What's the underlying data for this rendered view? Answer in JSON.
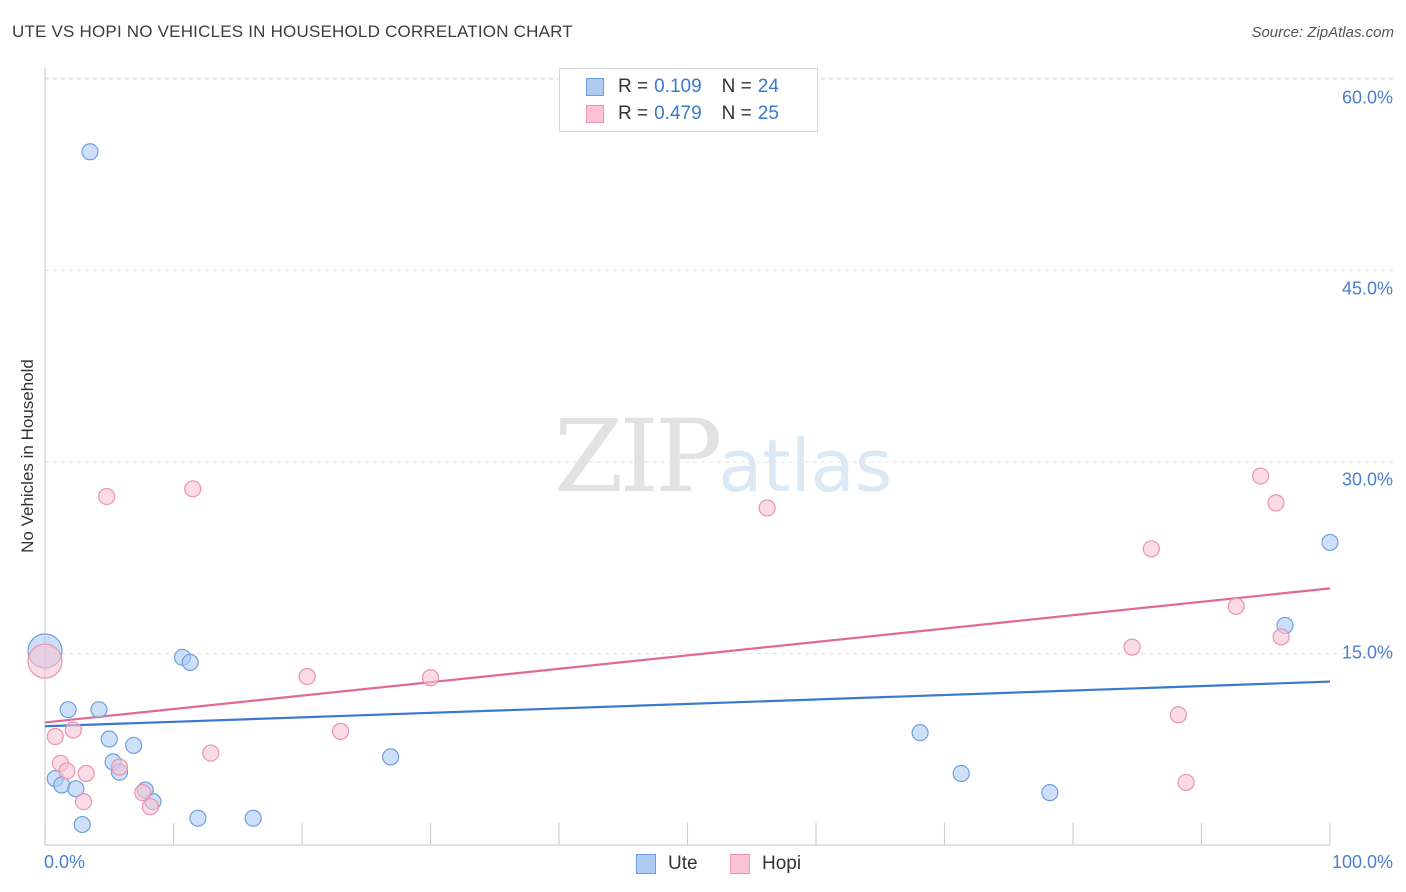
{
  "title": "UTE VS HOPI NO VEHICLES IN HOUSEHOLD CORRELATION CHART",
  "source": "Source: ZipAtlas.com",
  "legend": {
    "ute": {
      "r_label": "R =",
      "r_value": "0.109",
      "n_label": "N =",
      "n_value": "24"
    },
    "hopi": {
      "r_label": "R =",
      "r_value": "0.479",
      "n_label": "N =",
      "n_value": "25"
    }
  },
  "bottom_legend": {
    "ute": "Ute",
    "hopi": "Hopi"
  },
  "watermark": {
    "zip": "ZIP",
    "atlas": "atlas"
  },
  "colors": {
    "ute_fill": "#aecbf2",
    "ute_stroke": "#6d9fe0",
    "ute_line": "#3b78d0",
    "hopi_fill": "#f9c3d3",
    "hopi_stroke": "#eb93b0",
    "hopi_line": "#e06a92",
    "tick_text": "#4a7fd0",
    "grid": "#e3e3e3"
  },
  "chart_data": {
    "type": "scatter",
    "title": "UTE VS HOPI NO VEHICLES IN HOUSEHOLD CORRELATION CHART",
    "xlabel": "",
    "ylabel": "No Vehicles in Household",
    "xlim": [
      0,
      100
    ],
    "ylim": [
      0,
      63
    ],
    "x_tick_labels": [
      "0.0%",
      "100.0%"
    ],
    "y_ticks": [
      15,
      30,
      45,
      60
    ],
    "y_tick_labels": [
      "15.0%",
      "30.0%",
      "45.0%",
      "60.0%"
    ],
    "grid": true,
    "legend_position": "top-center",
    "series": [
      {
        "name": "Ute",
        "r": 0.109,
        "n": 24,
        "points": [
          {
            "x": 0.0,
            "y": 15.2,
            "big": true
          },
          {
            "x": 0.8,
            "y": 5.2
          },
          {
            "x": 1.3,
            "y": 4.7
          },
          {
            "x": 1.8,
            "y": 10.6
          },
          {
            "x": 2.4,
            "y": 4.4
          },
          {
            "x": 2.9,
            "y": 1.6
          },
          {
            "x": 3.5,
            "y": 54.3
          },
          {
            "x": 4.2,
            "y": 10.6
          },
          {
            "x": 5.0,
            "y": 8.3
          },
          {
            "x": 5.3,
            "y": 6.5
          },
          {
            "x": 5.8,
            "y": 5.7
          },
          {
            "x": 6.9,
            "y": 7.8
          },
          {
            "x": 7.8,
            "y": 4.3
          },
          {
            "x": 8.4,
            "y": 3.4
          },
          {
            "x": 10.7,
            "y": 14.7
          },
          {
            "x": 11.3,
            "y": 14.3
          },
          {
            "x": 11.9,
            "y": 2.1
          },
          {
            "x": 16.2,
            "y": 2.1
          },
          {
            "x": 26.9,
            "y": 6.9
          },
          {
            "x": 68.1,
            "y": 8.8
          },
          {
            "x": 71.3,
            "y": 5.6
          },
          {
            "x": 78.2,
            "y": 4.1
          },
          {
            "x": 96.5,
            "y": 17.2
          },
          {
            "x": 100.0,
            "y": 23.7
          }
        ],
        "trend": {
          "x": [
            0,
            100
          ],
          "y": [
            9.3,
            12.8
          ]
        }
      },
      {
        "name": "Hopi",
        "r": 0.479,
        "n": 25,
        "points": [
          {
            "x": 0.0,
            "y": 14.4,
            "big": true
          },
          {
            "x": 0.8,
            "y": 8.5
          },
          {
            "x": 1.2,
            "y": 6.4
          },
          {
            "x": 1.7,
            "y": 5.8
          },
          {
            "x": 2.2,
            "y": 9.0
          },
          {
            "x": 3.0,
            "y": 3.4
          },
          {
            "x": 3.2,
            "y": 5.6
          },
          {
            "x": 4.8,
            "y": 27.3
          },
          {
            "x": 5.8,
            "y": 6.1
          },
          {
            "x": 7.6,
            "y": 4.1
          },
          {
            "x": 8.2,
            "y": 3.0
          },
          {
            "x": 11.5,
            "y": 27.9
          },
          {
            "x": 12.9,
            "y": 7.2
          },
          {
            "x": 20.4,
            "y": 13.2
          },
          {
            "x": 23.0,
            "y": 8.9
          },
          {
            "x": 30.0,
            "y": 13.1
          },
          {
            "x": 56.2,
            "y": 26.4
          },
          {
            "x": 84.6,
            "y": 15.5
          },
          {
            "x": 86.1,
            "y": 23.2
          },
          {
            "x": 88.2,
            "y": 10.2
          },
          {
            "x": 88.8,
            "y": 4.9
          },
          {
            "x": 92.7,
            "y": 18.7
          },
          {
            "x": 94.6,
            "y": 28.9
          },
          {
            "x": 95.8,
            "y": 26.8
          },
          {
            "x": 96.2,
            "y": 16.3
          }
        ],
        "trend": {
          "x": [
            0,
            100
          ],
          "y": [
            9.6,
            20.1
          ]
        }
      }
    ]
  }
}
